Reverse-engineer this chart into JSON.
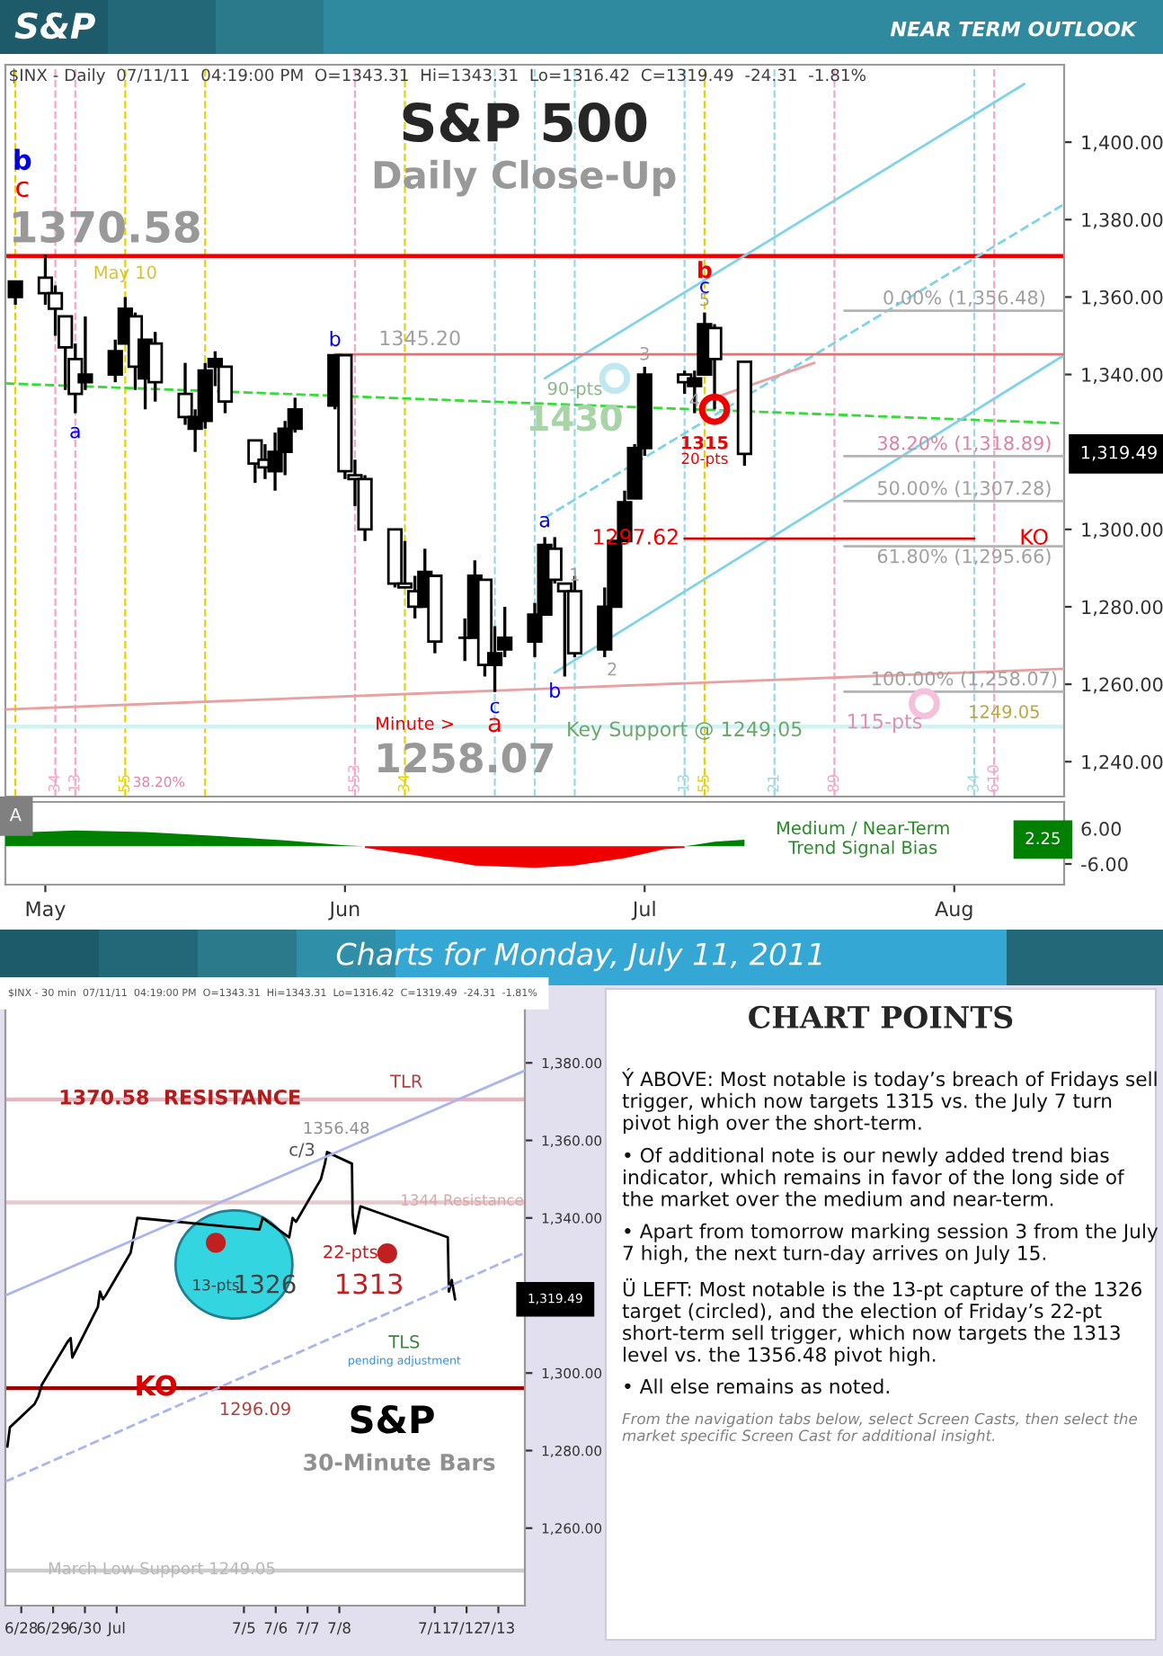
{
  "chart_data": [
    {
      "type": "candlestick",
      "title": "S&P 500",
      "subtitle": "Daily Close-Up",
      "color": "#000000",
      "x": [
        "2011-04-29",
        "2011-05-02",
        "2011-05-03",
        "2011-05-04",
        "2011-05-05",
        "2011-05-06",
        "2011-05-09",
        "2011-05-10",
        "2011-05-11",
        "2011-05-12",
        "2011-05-13",
        "2011-05-16",
        "2011-05-17",
        "2011-05-18",
        "2011-05-19",
        "2011-05-20",
        "2011-05-23",
        "2011-05-24",
        "2011-05-25",
        "2011-05-26",
        "2011-05-27",
        "2011-05-31",
        "2011-06-01",
        "2011-06-02",
        "2011-06-03",
        "2011-06-06",
        "2011-06-07",
        "2011-06-08",
        "2011-06-09",
        "2011-06-10",
        "2011-06-13",
        "2011-06-14",
        "2011-06-15",
        "2011-06-16",
        "2011-06-17",
        "2011-06-20",
        "2011-06-21",
        "2011-06-22",
        "2011-06-23",
        "2011-06-24",
        "2011-06-27",
        "2011-06-28",
        "2011-06-29",
        "2011-06-30",
        "2011-07-01",
        "2011-07-05",
        "2011-07-06",
        "2011-07-07",
        "2011-07-08",
        "2011-07-11"
      ],
      "ohlc": [
        [
          1360,
          1364,
          1358,
          1364
        ],
        [
          1365,
          1371,
          1358,
          1361
        ],
        [
          1361,
          1363,
          1350,
          1357
        ],
        [
          1355,
          1355,
          1336,
          1347
        ],
        [
          1344,
          1348,
          1330,
          1335
        ],
        [
          1338,
          1355,
          1336,
          1340
        ],
        [
          1340,
          1349,
          1338,
          1346
        ],
        [
          1348,
          1360,
          1348,
          1357
        ],
        [
          1355,
          1356,
          1336,
          1342
        ],
        [
          1339,
          1349,
          1331,
          1349
        ],
        [
          1348,
          1351,
          1333,
          1338
        ],
        [
          1335,
          1343,
          1327,
          1329
        ],
        [
          1326,
          1331,
          1320,
          1329
        ],
        [
          1328,
          1343,
          1326,
          1341
        ],
        [
          1342,
          1346,
          1337,
          1344
        ],
        [
          1342,
          1342,
          1330,
          1333
        ],
        [
          1323,
          1323,
          1312,
          1317
        ],
        [
          1318,
          1322,
          1313,
          1316
        ],
        [
          1315,
          1325,
          1310,
          1320
        ],
        [
          1320,
          1328,
          1314,
          1326
        ],
        [
          1326,
          1334,
          1325,
          1331
        ],
        [
          1332,
          1345,
          1331,
          1345
        ],
        [
          1345,
          1345,
          1313,
          1315
        ],
        [
          1314,
          1318,
          1306,
          1313
        ],
        [
          1313,
          1314,
          1297,
          1300
        ],
        [
          1300,
          1300,
          1285,
          1286
        ],
        [
          1286,
          1297,
          1285,
          1285
        ],
        [
          1284,
          1288,
          1277,
          1280
        ],
        [
          1280,
          1295,
          1280,
          1289
        ],
        [
          1288,
          1288,
          1268,
          1271
        ],
        [
          1272,
          1277,
          1266,
          1272
        ],
        [
          1272,
          1292,
          1272,
          1288
        ],
        [
          1287,
          1287,
          1262,
          1265
        ],
        [
          1265,
          1275,
          1258,
          1268
        ],
        [
          1269,
          1280,
          1267,
          1272
        ],
        [
          1271,
          1281,
          1267,
          1278
        ],
        [
          1278,
          1298,
          1278,
          1296
        ],
        [
          1295,
          1298,
          1286,
          1287
        ],
        [
          1286,
          1286,
          1262,
          1284
        ],
        [
          1284,
          1288,
          1267,
          1268
        ],
        [
          1269,
          1285,
          1267,
          1280
        ],
        [
          1280,
          1297,
          1280,
          1297
        ],
        [
          1297,
          1310,
          1297,
          1307
        ],
        [
          1308,
          1322,
          1308,
          1321
        ],
        [
          1321,
          1342,
          1319,
          1340
        ],
        [
          1340,
          1341,
          1335,
          1338
        ],
        [
          1337,
          1341,
          1330,
          1339
        ],
        [
          1340,
          1356,
          1340,
          1353
        ],
        [
          1352,
          1353,
          1331,
          1344
        ],
        [
          1343.31,
          1343.31,
          1316.42,
          1319.49
        ]
      ],
      "series": [
        {
          "type": "line",
          "color": "#e8a0a0",
          "x": [
            "2011-04-28",
            "2011-08-12"
          ],
          "values": [
            1253.5,
            1264
          ]
        },
        {
          "type": "line",
          "color": "#33dd33",
          "line_style": "dashed",
          "x": [
            "2011-04-28",
            "2011-08-12"
          ],
          "values": [
            1337.7,
            1327.4
          ]
        },
        {
          "type": "line",
          "color": "#7fd3e6",
          "x": [
            "2011-06-21",
            "2011-08-08"
          ],
          "values": [
            1339,
            1415
          ]
        },
        {
          "type": "line",
          "color": "#7fd3e6",
          "line_style": "dashed",
          "x": [
            "2011-06-21",
            "2011-08-12"
          ],
          "values": [
            1303,
            1384
          ]
        },
        {
          "type": "line",
          "color": "#7fd3e6",
          "x": [
            "2011-06-22",
            "2011-08-12"
          ],
          "values": [
            1263,
            1345
          ]
        },
        {
          "type": "line",
          "color": "#e8a0a0",
          "x": [
            "2011-07-08",
            "2011-07-18"
          ],
          "values": [
            1334,
            1343
          ]
        },
        {
          "type": "line",
          "color": "#e87070",
          "x": [
            "2011-05-31",
            "2011-08-12"
          ],
          "values": [
            1345.2,
            1345.2
          ]
        },
        {
          "type": "line",
          "color": "#dd0000",
          "x": [
            "2011-07-05",
            "2011-08-03"
          ],
          "values": [
            1297.62,
            1297.62
          ]
        },
        {
          "type": "line",
          "color": "#b4b4b4",
          "x": [
            "2011-07-21",
            "2011-08-12"
          ],
          "values": [
            1356.48,
            1356.48
          ]
        },
        {
          "type": "line",
          "color": "#b4b4b4",
          "x": [
            "2011-07-21",
            "2011-08-12"
          ],
          "values": [
            1318.89,
            1318.89
          ]
        },
        {
          "type": "line",
          "color": "#b4b4b4",
          "x": [
            "2011-07-21",
            "2011-08-12"
          ],
          "values": [
            1307.28,
            1307.28
          ]
        },
        {
          "type": "line",
          "color": "#b4b4b4",
          "x": [
            "2011-07-21",
            "2011-08-12"
          ],
          "values": [
            1295.66,
            1295.66
          ]
        },
        {
          "type": "line",
          "color": "#b4b4b4",
          "x": [
            "2011-07-21",
            "2011-08-12"
          ],
          "values": [
            1258.07,
            1258.07
          ]
        }
      ],
      "ref_lines": [
        {
          "axis": "y",
          "value": 1370.58,
          "color": "#ee0000"
        },
        {
          "axis": "y",
          "value": 1249.05,
          "color": "#d4f2f4"
        },
        {
          "axis": "x",
          "value": "2011-04-29",
          "color": "#e6d200",
          "line_style": "dashed"
        },
        {
          "axis": "x",
          "value": "2011-05-03",
          "label": "34",
          "color": "#f4a6c8",
          "line_style": "dashed"
        },
        {
          "axis": "x",
          "value": "2011-05-05",
          "label": "13",
          "color": "#f4a6c8",
          "line_style": "dashed"
        },
        {
          "axis": "x",
          "value": "2011-05-10",
          "label": "55",
          "color": "#e6d200",
          "line_style": "dashed"
        },
        {
          "axis": "x",
          "value": "2011-05-18",
          "color": "#e6d200",
          "line_style": "dashed"
        },
        {
          "axis": "x",
          "value": "2011-06-02",
          "label": "553",
          "color": "#f4a6c8",
          "line_style": "dashed"
        },
        {
          "axis": "x",
          "value": "2011-06-07",
          "label": "34",
          "color": "#e6d200",
          "line_style": "dashed"
        },
        {
          "axis": "x",
          "value": "2011-06-16",
          "color": "#9ad9e6",
          "line_style": "dashed"
        },
        {
          "axis": "x",
          "value": "2011-06-20",
          "color": "#9ad9e6",
          "line_style": "dashed"
        },
        {
          "axis": "x",
          "value": "2011-06-24",
          "color": "#9ad9e6",
          "line_style": "dashed"
        },
        {
          "axis": "x",
          "value": "2011-07-05",
          "label": "13",
          "color": "#9ad9e6",
          "line_style": "dashed"
        },
        {
          "axis": "x",
          "value": "2011-07-07",
          "label": "55",
          "color": "#e6d200",
          "line_style": "dashed"
        },
        {
          "axis": "x",
          "value": "2011-07-14",
          "label": "21",
          "color": "#9ad9e6",
          "line_style": "dashed"
        },
        {
          "axis": "x",
          "value": "2011-07-20",
          "label": "89",
          "color": "#f4a6c8",
          "line_style": "dashed"
        },
        {
          "axis": "x",
          "value": "2011-08-03",
          "label": "34",
          "color": "#9ad9e6",
          "line_style": "dashed"
        },
        {
          "axis": "x",
          "value": "2011-08-05",
          "label": "610",
          "color": "#f4a6c8",
          "line_style": "dashed"
        }
      ],
      "annotations": [
        "S&P",
        "NEAR TERM OUTLOOK",
        "$INX - Daily  07/11/11  04:19:00 PM  O=1343.31  Hi=1343.31  Lo=1316.42  C=1319.49  -24.31  -1.81%",
        "b",
        "c",
        {
          "text": "1370.58",
          "x": "2011-05-08",
          "y": 1370.58
        },
        {
          "text": "May 10",
          "x": "2011-05-10",
          "y": 1366
        },
        {
          "text": "a",
          "x": "2011-05-05",
          "y": 1325
        },
        {
          "text": "b",
          "x": "2011-05-31",
          "y": 1345
        },
        {
          "text": "1345.20",
          "x": "2011-06-08",
          "y": 1345.2
        },
        {
          "text": "90-pts",
          "x": "2011-06-24",
          "y": 1336
        },
        {
          "text": "1430",
          "x": "2011-06-24",
          "y": 1328
        },
        {
          "text": "a",
          "x": "2011-06-21",
          "y": 1302
        },
        {
          "text": "1",
          "x": "2011-06-24",
          "y": 1288
        },
        {
          "text": "2",
          "x": "2011-06-27",
          "y": 1267
        },
        {
          "text": "b",
          "x": "2011-06-22",
          "y": 1258
        },
        {
          "text": "c",
          "x": "2011-06-16",
          "y": 1254
        },
        {
          "text": "Minute >",
          "x": "2011-06-08",
          "y": 1249.5
        },
        {
          "text": "a",
          "x": "2011-06-16",
          "y": 1249.5
        },
        {
          "text": "1258.07",
          "x": "2011-06-16",
          "y": 1258
        },
        {
          "text": "3",
          "x": "2011-07-01",
          "y": 1345
        },
        {
          "text": "4",
          "x": "2011-07-06",
          "y": 1333
        },
        {
          "text": "5",
          "x": "2011-07-07",
          "y": 1359
        },
        {
          "text": "c",
          "x": "2011-07-07",
          "y": 1362.5
        },
        {
          "text": "b",
          "x": "2011-07-07",
          "y": 1366.5
        },
        {
          "text": "1315",
          "x": "2011-07-07",
          "y": 1322
        },
        {
          "text": "20-pts",
          "x": "2011-07-07",
          "y": 1318
        },
        {
          "text": "0.00% (1,356.48)",
          "x": "2011-08-02",
          "y": 1356.48
        },
        {
          "text": "38.20% (1,318.89)",
          "x": "2011-08-02",
          "y": 1318.89
        },
        {
          "text": "50.00% (1,307.28)",
          "x": "2011-08-02",
          "y": 1307.28
        },
        {
          "text": "61.80% (1,295.66)",
          "x": "2011-08-02",
          "y": 1295.66
        },
        {
          "text": "100.00% (1,258.07)",
          "x": "2011-08-02",
          "y": 1258.07
        },
        {
          "text": "115-pts",
          "x": "2011-07-25",
          "y": 1250
        },
        {
          "text": "1249.05",
          "x": "2011-08-06",
          "y": 1249.05
        },
        {
          "text": "Key Support @ 1249.05",
          "x": "2011-07-05",
          "y": 1248
        },
        {
          "text": "1297.62",
          "x": "2011-07-05",
          "y": 1297.62
        },
        {
          "text": "KO",
          "x": "2011-08-09",
          "y": 1297.6
        },
        {
          "text": "38.20%",
          "x": "2011-05-10",
          "y": 1234.5
        },
        "1,319.49"
      ],
      "xlim": [
        "2011-04-28",
        "2011-08-12"
      ],
      "ylim": [
        1231,
        1420
      ],
      "yticks": [
        {
          "value": 1240,
          "label": "1,240.00"
        },
        {
          "value": 1260,
          "label": "1,260.00"
        },
        {
          "value": 1280,
          "label": "1,280.00"
        },
        {
          "value": 1300,
          "label": "1,300.00"
        },
        {
          "value": 1340,
          "label": "1,340.00"
        },
        {
          "value": 1360,
          "label": "1,360.00"
        },
        {
          "value": 1380,
          "label": "1,380.00"
        },
        {
          "value": 1400,
          "label": "1,400.00"
        }
      ],
      "tick_labels": "y"
    },
    {
      "type": "area",
      "series": [
        {
          "color": "#008000",
          "x": [
            "2011-04-28",
            "2011-05-05",
            "2011-05-12",
            "2011-05-19",
            "2011-05-26",
            "2011-06-01",
            "2011-06-03",
            "2011-07-05",
            "2011-07-06",
            "2011-07-08",
            "2011-07-11"
          ],
          "values": [
            4.5,
            5.3,
            4.8,
            3.5,
            2,
            0.3,
            0,
            0,
            0.5,
            1.5,
            2.25
          ]
        },
        {
          "color": "#ee0000",
          "x": [
            "2011-06-03",
            "2011-06-08",
            "2011-06-14",
            "2011-06-20",
            "2011-06-24",
            "2011-06-29",
            "2011-07-03",
            "2011-07-05"
          ],
          "values": [
            -0.5,
            -3,
            -6.5,
            -7.3,
            -6.5,
            -4,
            -1,
            -0.5
          ]
        }
      ],
      "annotations": [
        "A",
        "Medium / Near-Term\nTrend Signal Bias",
        "2.25"
      ],
      "xlim": [
        "2011-04-28",
        "2011-08-12"
      ],
      "ylim": [
        -13,
        15
      ],
      "xticks": [
        {
          "value": "2011-05-02",
          "label": "May"
        },
        {
          "value": "2011-06-01",
          "label": "Jun"
        },
        {
          "value": "2011-07-01",
          "label": "Jul"
        },
        {
          "value": "2011-08-01",
          "label": "Aug"
        }
      ],
      "yticks": [
        {
          "value": 6,
          "label": "6.00"
        },
        {
          "value": -6,
          "label": "-6.00"
        }
      ]
    },
    {
      "type": "line",
      "title": "Charts for Monday, July 11, 2011",
      "subtitle": "$INX - 30 min  07/11/11  04:19:00 PM  O=1343.31  Hi=1343.31  Lo=1316.42  C=1319.49  -24.31  -1.81%",
      "series": [
        {
          "color": "#000000",
          "x": [
            "2011-06-27T13:30",
            "2011-06-27T15:25",
            "2011-06-28T10:00",
            "2011-06-28T12:55",
            "2011-06-28T15:30",
            "2011-06-29T10:50",
            "2011-06-29T13:15",
            "2011-06-29T14:30",
            "2011-06-30T09:45",
            "2011-06-30T11:25",
            "2011-06-30T13:35",
            "2011-06-30T15:40",
            "2011-07-01T10:30",
            "2011-07-01T12:10",
            "2011-07-01T15:35",
            "2011-07-05T11:40",
            "2011-07-05T14:10",
            "2011-07-06T10:10",
            "2011-07-06T12:45",
            "2011-07-06T15:20",
            "2011-07-07T10:05",
            "2011-07-07T13:05",
            "2011-07-07T14:45",
            "2011-07-08T09:30",
            "2011-07-08T10:00",
            "2011-07-08T11:40",
            "2011-07-08T13:25",
            "2011-07-08T15:55",
            "2011-07-11T09:50",
            "2011-07-11T10:40",
            "2011-07-11T12:50",
            "2011-07-11T15:20"
          ],
          "values": [
            1281,
            1286,
            1292,
            1294,
            1297,
            1308,
            1309,
            1304,
            1317,
            1321,
            1319,
            1320,
            1331,
            1334,
            1340,
            1337,
            1340,
            1335,
            1340,
            1339,
            1350,
            1354,
            1357,
            1354,
            1341,
            1336,
            1339,
            1343,
            1335,
            1321,
            1324,
            1319
          ]
        },
        {
          "color": "#aab4ee",
          "x": [
            "2011-06-27T12:00",
            "2011-07-13T20:00"
          ],
          "values": [
            1320,
            1378
          ]
        },
        {
          "color": "#aab4ee",
          "line_style": "dashed",
          "x": [
            "2011-06-27T12:00",
            "2011-07-13T20:00"
          ],
          "values": [
            1272,
            1331
          ]
        }
      ],
      "ref_lines": [
        {
          "axis": "y",
          "value": 1370.58,
          "color": "#e8b4c0"
        },
        {
          "axis": "y",
          "value": 1344,
          "color": "#e8c8cc"
        },
        {
          "axis": "y",
          "value": 1296.09,
          "color": "#a00000"
        },
        {
          "axis": "y",
          "value": 1249.05,
          "color": "#cccccc"
        }
      ],
      "annotations": [
        "1370.58  RESISTANCE",
        "TLR",
        "1356.48",
        "c/3",
        "1344 Resistance",
        "13-pts",
        "1326",
        "22-pts",
        "1313",
        "TLS",
        "pending adjustment",
        "KO",
        "1296.09",
        "S&P",
        "30-Minute Bars",
        "March Low Support 1249.05",
        "1,319.49"
      ],
      "xlim": [
        "2011-06-27T12:00",
        "2011-07-13T20:00"
      ],
      "ylim": [
        1240,
        1400
      ],
      "xticks": [
        {
          "value": "2011-06-28",
          "label": "6/28"
        },
        {
          "value": "2011-06-29",
          "label": "6/29"
        },
        {
          "value": "2011-06-30",
          "label": "6/30"
        },
        {
          "value": "2011-07-01",
          "label": "Jul"
        },
        {
          "value": "2011-07-05",
          "label": "7/5"
        },
        {
          "value": "2011-07-06",
          "label": "7/6"
        },
        {
          "value": "2011-07-07",
          "label": "7/7"
        },
        {
          "value": "2011-07-08",
          "label": "7/8"
        },
        {
          "value": "2011-07-11",
          "label": "7/11"
        },
        {
          "value": "2011-07-12",
          "label": "7/12"
        },
        {
          "value": "2011-07-13",
          "label": "7/13"
        }
      ],
      "yticks": [
        {
          "value": 1260,
          "label": "1,260.00"
        },
        {
          "value": 1280,
          "label": "1,280.00"
        },
        {
          "value": 1300,
          "label": "1,300.00"
        },
        {
          "value": 1340,
          "label": "1,340.00"
        },
        {
          "value": 1360,
          "label": "1,360.00"
        },
        {
          "value": 1380,
          "label": "1,380.00"
        }
      ]
    },
    {
      "type": "other",
      "title": "CHART POINTS",
      "annotations": [
        "Ý ABOVE: Most notable is today’s breach of Fridays sell trigger, which now targets 1315 vs. the July 7 turn pivot high over the short-term.",
        "• Of additional note is our newly added trend bias indicator, which remains in favor of the long side of the market over the medium and near-term.",
        "• Apart from tomorrow marking session 3 from the July 7 high, the next turn-day arrives on July 15.",
        "Ü LEFT: Most notable is the 13-pt capture of the 1326 target (circled), and the election of Friday’s 22-pt short-term sell trigger, which now targets the 1313 level vs. the 1356.48 pivot high.",
        "• All else remains as noted.",
        "From the navigation tabs below, select Screen Casts, then select the market specific Screen Cast for additional insight."
      ]
    }
  ]
}
